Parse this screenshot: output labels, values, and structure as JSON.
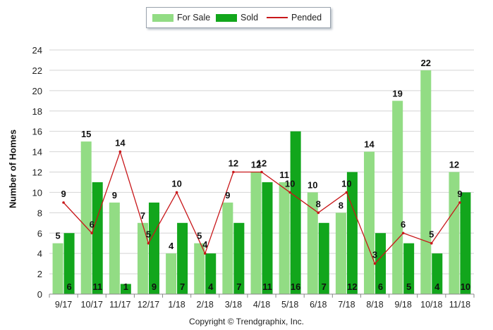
{
  "chart_data": {
    "type": "bar",
    "categories": [
      "9/17",
      "10/17",
      "11/17",
      "12/17",
      "1/18",
      "2/18",
      "3/18",
      "4/18",
      "5/18",
      "6/18",
      "7/18",
      "8/18",
      "9/18",
      "10/18",
      "11/18"
    ],
    "series": [
      {
        "name": "For Sale",
        "type": "bar",
        "color": "#92dc84",
        "values": [
          5,
          15,
          9,
          7,
          4,
          5,
          9,
          12,
          11,
          10,
          8,
          14,
          19,
          22,
          12
        ]
      },
      {
        "name": "Sold",
        "type": "bar",
        "color": "#12a61c",
        "values": [
          6,
          11,
          1,
          9,
          7,
          4,
          7,
          11,
          16,
          7,
          12,
          6,
          5,
          4,
          10
        ]
      },
      {
        "name": "Pended",
        "type": "line",
        "color": "#c8171a",
        "values": [
          9,
          6,
          14,
          5,
          10,
          4,
          12,
          12,
          10,
          8,
          10,
          3,
          6,
          5,
          9
        ]
      }
    ],
    "ylabel": "Number of Homes",
    "xlabel": "",
    "ylim": [
      0,
      24
    ],
    "yticks": [
      0,
      2,
      4,
      6,
      8,
      10,
      12,
      14,
      16,
      18,
      20,
      22,
      24
    ],
    "grid": true,
    "legend_position": "top-center"
  },
  "copyright": "Copyright © Trendgraphix, Inc."
}
